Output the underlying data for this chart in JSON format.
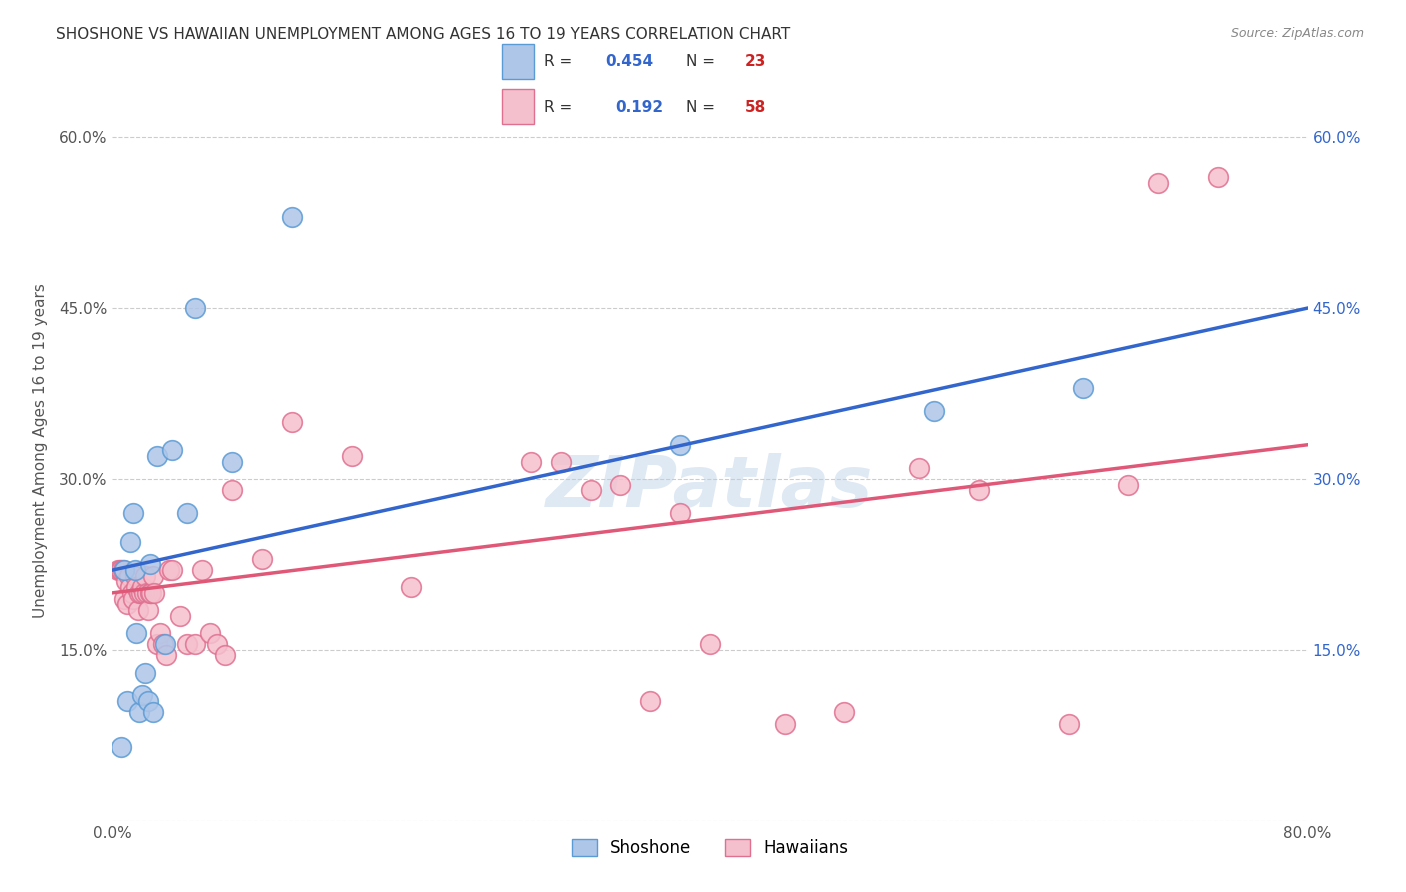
{
  "title": "SHOSHONE VS HAWAIIAN UNEMPLOYMENT AMONG AGES 16 TO 19 YEARS CORRELATION CHART",
  "source": "Source: ZipAtlas.com",
  "ylabel": "Unemployment Among Ages 16 to 19 years",
  "xlim": [
    0.0,
    0.8
  ],
  "ylim": [
    0.0,
    0.65
  ],
  "xticks": [
    0.0,
    0.1,
    0.2,
    0.3,
    0.4,
    0.5,
    0.6,
    0.7,
    0.8
  ],
  "xticklabels": [
    "0.0%",
    "",
    "",
    "",
    "",
    "",
    "",
    "",
    "80.0%"
  ],
  "yticks": [
    0.0,
    0.15,
    0.3,
    0.45,
    0.6
  ],
  "yticklabels": [
    "",
    "15.0%",
    "30.0%",
    "45.0%",
    "60.0%"
  ],
  "right_yticklabels": [
    "",
    "15.0%",
    "30.0%",
    "45.0%",
    "60.0%"
  ],
  "background_color": "#ffffff",
  "grid_color": "#cccccc",
  "shoshone_color": "#aec6e8",
  "shoshone_edge_color": "#5b9bd5",
  "hawaiian_color": "#f5c0ce",
  "hawaiian_edge_color": "#e07090",
  "shoshone_R": 0.454,
  "shoshone_N": 23,
  "hawaiian_R": 0.192,
  "hawaiian_N": 58,
  "blue_line_color": "#3366cc",
  "pink_line_color": "#e05878",
  "legend_R_color": "#3366cc",
  "legend_N_color": "#cc2222",
  "watermark": "ZIPatlas",
  "shoshone_x": [
    0.006,
    0.008,
    0.01,
    0.012,
    0.014,
    0.015,
    0.016,
    0.018,
    0.02,
    0.022,
    0.024,
    0.025,
    0.027,
    0.03,
    0.035,
    0.04,
    0.05,
    0.055,
    0.08,
    0.12,
    0.38,
    0.55,
    0.65
  ],
  "shoshone_y": [
    0.065,
    0.22,
    0.105,
    0.245,
    0.27,
    0.22,
    0.165,
    0.095,
    0.11,
    0.13,
    0.105,
    0.225,
    0.095,
    0.32,
    0.155,
    0.325,
    0.27,
    0.45,
    0.315,
    0.53,
    0.33,
    0.36,
    0.38
  ],
  "hawaiian_x": [
    0.004,
    0.005,
    0.006,
    0.007,
    0.008,
    0.009,
    0.01,
    0.011,
    0.012,
    0.013,
    0.014,
    0.015,
    0.016,
    0.017,
    0.018,
    0.019,
    0.02,
    0.021,
    0.022,
    0.023,
    0.024,
    0.025,
    0.026,
    0.027,
    0.028,
    0.03,
    0.032,
    0.034,
    0.036,
    0.038,
    0.04,
    0.045,
    0.05,
    0.055,
    0.06,
    0.065,
    0.07,
    0.075,
    0.08,
    0.1,
    0.12,
    0.16,
    0.2,
    0.28,
    0.3,
    0.32,
    0.34,
    0.36,
    0.38,
    0.4,
    0.45,
    0.49,
    0.54,
    0.58,
    0.64,
    0.68,
    0.7,
    0.74
  ],
  "hawaiian_y": [
    0.22,
    0.22,
    0.22,
    0.22,
    0.195,
    0.21,
    0.19,
    0.215,
    0.205,
    0.2,
    0.195,
    0.215,
    0.205,
    0.185,
    0.2,
    0.2,
    0.205,
    0.2,
    0.215,
    0.2,
    0.185,
    0.2,
    0.2,
    0.215,
    0.2,
    0.155,
    0.165,
    0.155,
    0.145,
    0.22,
    0.22,
    0.18,
    0.155,
    0.155,
    0.22,
    0.165,
    0.155,
    0.145,
    0.29,
    0.23,
    0.35,
    0.32,
    0.205,
    0.315,
    0.315,
    0.29,
    0.295,
    0.105,
    0.27,
    0.155,
    0.085,
    0.095,
    0.31,
    0.29,
    0.085,
    0.295,
    0.56,
    0.565
  ]
}
